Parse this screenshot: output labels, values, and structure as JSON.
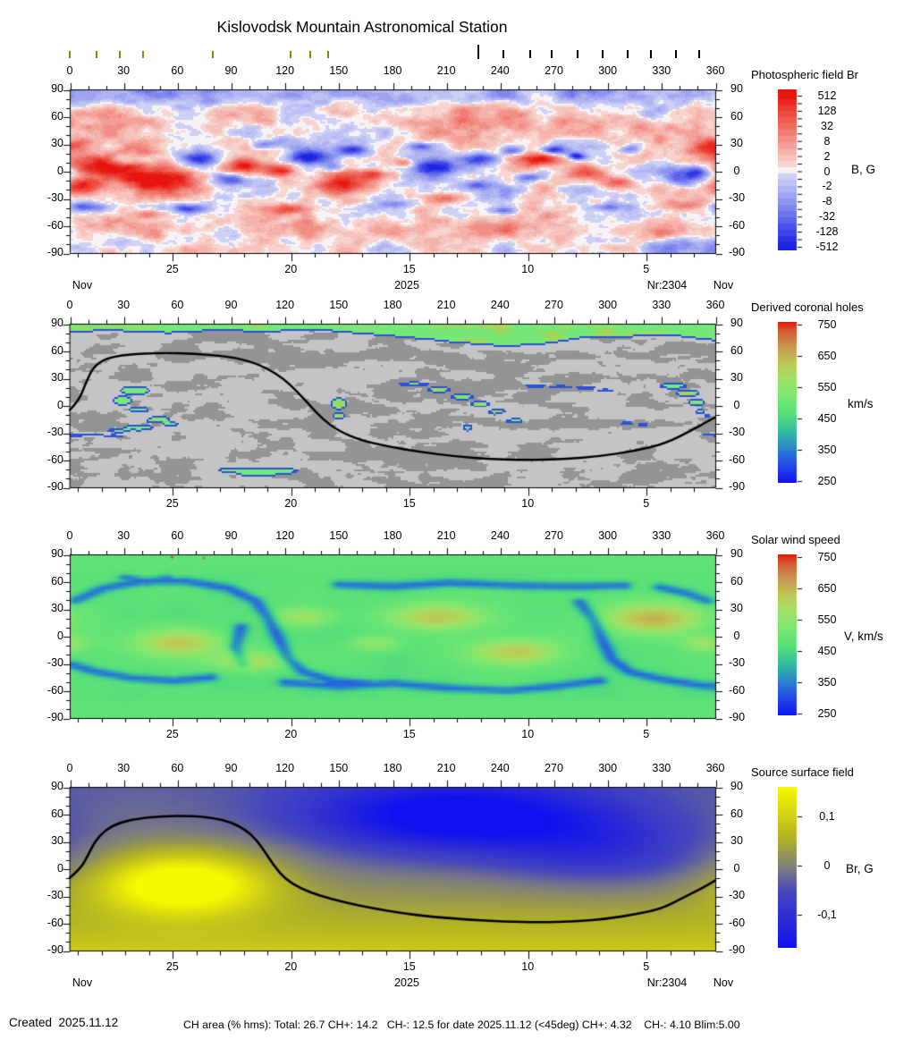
{
  "title": "Kislovodsk Mountain Astronomical Station",
  "footer": {
    "created": "Created  2025.11.12",
    "ch_area": "CH area (% hms): Total: 26.7 CH+: 14.2   CH-: 12.5 for date 2025.11.12 (<45deg) CH+: 4.32    CH-: 4.10 Blim:5.00"
  },
  "axis": {
    "lon_labels": [
      0,
      30,
      60,
      90,
      120,
      150,
      180,
      210,
      240,
      270,
      300,
      330,
      360
    ],
    "lat_labels": [
      90,
      60,
      30,
      0,
      -30,
      -60,
      -90
    ],
    "date_labels": [
      "25",
      "20",
      "15",
      "10",
      "5"
    ],
    "date_fracs": [
      0.159,
      0.3425,
      0.526,
      0.7095,
      0.893
    ],
    "day_step_frac": 0.0367,
    "month_left": "Nov",
    "month_right": "Nov",
    "year_label": "2025",
    "rotation_label": "Nr:2304"
  },
  "observation_marks": {
    "olive_lons": [
      0,
      15,
      28,
      41,
      80,
      123,
      134,
      144
    ],
    "black_lons": [
      242,
      257,
      269,
      283,
      297,
      311,
      324,
      338,
      351
    ],
    "tall_black_lon": 228,
    "olive_color": "#8a8a00"
  },
  "panels": [
    {
      "key": "br",
      "title": "Photospheric field Br",
      "unit": "B, G",
      "colorbar_ticks": [
        "512",
        "128",
        "32",
        "8",
        "2",
        "0",
        "-2",
        "-8",
        "-32",
        "-128",
        "-512"
      ],
      "show_month_row": true
    },
    {
      "key": "ch",
      "title": "Derived coronal holes",
      "unit": "km/s",
      "colorbar_ticks": [
        "750",
        "650",
        "550",
        "450",
        "350",
        "250"
      ],
      "show_month_row": false
    },
    {
      "key": "wind",
      "title": "Solar wind speed",
      "unit": "V, km/s",
      "colorbar_ticks": [
        "750",
        "650",
        "550",
        "450",
        "350",
        "250"
      ],
      "show_month_row": false
    },
    {
      "key": "ss",
      "title": "Source surface field",
      "unit": "Br, G",
      "colorbar_ticks": [
        "0,1",
        "0",
        "-0,1"
      ],
      "show_month_row": true
    }
  ],
  "chart_data": [
    {
      "type": "heatmap",
      "title": "Photospheric field Br",
      "x_range": [
        0,
        360
      ],
      "x_ticks": [
        0,
        30,
        60,
        90,
        120,
        150,
        180,
        210,
        240,
        270,
        300,
        330,
        360
      ],
      "y_range": [
        -90,
        90
      ],
      "y_ticks": [
        90,
        60,
        30,
        0,
        -30,
        -60,
        -90
      ],
      "colorbar": {
        "unit": "B, G",
        "tick_values": [
          512,
          128,
          32,
          8,
          2,
          0,
          -2,
          -8,
          -32,
          -128,
          -512
        ],
        "scale": "diverging red(+) / blue(-), quasi-log"
      },
      "date_axis": {
        "month": "Nov",
        "year": "2025",
        "days": [
          25,
          20,
          15,
          10,
          5
        ],
        "rotation": "Nr:2304"
      },
      "features": {
        "positive_regions_lon_lat_rlon_rlat_amp": [
          [
            18,
            6,
            26,
            16,
            1.15
          ],
          [
            50,
            -10,
            20,
            14,
            1.0
          ],
          [
            38,
            26,
            14,
            9,
            0.7
          ],
          [
            8,
            -18,
            12,
            9,
            0.8
          ],
          [
            95,
            6,
            13,
            8,
            0.85
          ],
          [
            117,
            0,
            9,
            7,
            0.8
          ],
          [
            150,
            -16,
            16,
            11,
            0.95
          ],
          [
            170,
            -4,
            9,
            7,
            0.8
          ],
          [
            186,
            10,
            7,
            5,
            0.6
          ],
          [
            262,
            14,
            13,
            8,
            0.95
          ],
          [
            290,
            -2,
            11,
            9,
            0.7
          ],
          [
            306,
            -14,
            9,
            7,
            0.6
          ],
          [
            341,
            -38,
            15,
            7,
            0.6
          ],
          [
            125,
            -42,
            13,
            6,
            0.5
          ],
          [
            44,
            -48,
            12,
            5,
            0.45
          ],
          [
            0,
            30,
            10,
            6,
            0.5
          ],
          [
            210,
            -30,
            9,
            5,
            0.4
          ],
          [
            355,
            25,
            10,
            6,
            0.45
          ]
        ],
        "negative_regions_lon_lat_rlon_rlat_amp": [
          [
            30,
            12,
            8,
            6,
            -0.75
          ],
          [
            72,
            14,
            12,
            9,
            -0.9
          ],
          [
            88,
            -10,
            8,
            6,
            -0.6
          ],
          [
            134,
            16,
            11,
            7,
            -0.85
          ],
          [
            158,
            24,
            9,
            5,
            -0.7
          ],
          [
            147,
            4,
            7,
            5,
            -0.55
          ],
          [
            205,
            4,
            13,
            9,
            -0.9
          ],
          [
            228,
            14,
            11,
            7,
            -0.95
          ],
          [
            247,
            23,
            7,
            5,
            -0.8
          ],
          [
            270,
            24,
            7,
            5,
            -0.9
          ],
          [
            283,
            17,
            5,
            4,
            -0.95
          ],
          [
            226,
            -16,
            9,
            6,
            -0.7
          ],
          [
            258,
            -8,
            7,
            5,
            -0.6
          ],
          [
            347,
            -4,
            13,
            11,
            -0.9
          ],
          [
            312,
            25,
            7,
            5,
            -0.6
          ],
          [
            10,
            -40,
            12,
            5,
            -0.6
          ],
          [
            66,
            -42,
            13,
            5,
            -0.65
          ],
          [
            182,
            -36,
            11,
            5,
            -0.55
          ],
          [
            300,
            -40,
            9,
            4,
            -0.5
          ],
          [
            242,
            -44,
            9,
            4,
            -0.5
          ],
          [
            110,
            30,
            8,
            5,
            -0.5
          ],
          [
            195,
            28,
            7,
            4,
            -0.5
          ]
        ],
        "north_polar_cap": "pale blue (weak negative)",
        "south_polar_cap": "pale pink (weak positive)"
      }
    },
    {
      "type": "heatmap",
      "title": "Derived coronal holes",
      "x_range": [
        0,
        360
      ],
      "y_range": [
        -90,
        90
      ],
      "colorbar": {
        "unit": "km/s",
        "tick_values": [
          750,
          650,
          550,
          450,
          350,
          250
        ]
      },
      "background": "light/dark gray mottled closed-field regions",
      "north_polar_coronal_hole": "green band above lat ~70-82, wavy lower edge on right half",
      "coronal_holes_lon_lat_rlon_rlat": [
        [
          36,
          17,
          9,
          6
        ],
        [
          29,
          6,
          6,
          6
        ],
        [
          38,
          -6,
          6,
          5
        ],
        [
          48,
          -16,
          8,
          5
        ],
        [
          38,
          -25,
          9,
          4
        ],
        [
          27,
          -28,
          7,
          3
        ],
        [
          56,
          -21,
          5,
          3
        ],
        [
          150,
          2,
          5,
          8
        ],
        [
          150,
          -12,
          4,
          4
        ],
        [
          192,
          24,
          9,
          3
        ],
        [
          206,
          18,
          7,
          4
        ],
        [
          219,
          10,
          7,
          4
        ],
        [
          229,
          2,
          6,
          4
        ],
        [
          239,
          -8,
          6,
          4
        ],
        [
          248,
          -17,
          5,
          4
        ],
        [
          260,
          22,
          7,
          2
        ],
        [
          274,
          21,
          7,
          2
        ],
        [
          288,
          20,
          6,
          2
        ],
        [
          299,
          17,
          5,
          2
        ],
        [
          222,
          -25,
          3,
          4
        ],
        [
          311,
          -20,
          4,
          2
        ],
        [
          320,
          -22,
          3,
          2
        ],
        [
          337,
          22,
          8,
          4
        ],
        [
          345,
          14,
          7,
          5
        ],
        [
          350,
          4,
          5,
          5
        ],
        [
          352,
          -7,
          3,
          3
        ],
        [
          105,
          -74,
          15,
          6
        ],
        [
          91,
          -72,
          9,
          4
        ],
        [
          119,
          -73,
          9,
          4
        ],
        [
          3,
          -33,
          7,
          2
        ],
        [
          13,
          -33,
          6,
          1.5
        ],
        [
          24,
          -34,
          7,
          1.5
        ],
        [
          357,
          -33,
          4,
          1.5
        ],
        [
          356,
          -12,
          2,
          2
        ]
      ],
      "hole_gaps_lon_lat_rlon_rlat": [
        [
          37,
          -13,
          6,
          4
        ],
        [
          243,
          -12,
          4,
          3
        ]
      ],
      "neutral_line_lon_lat": [
        [
          0,
          -5
        ],
        [
          5,
          5
        ],
        [
          9,
          25
        ],
        [
          13,
          42
        ],
        [
          20,
          52
        ],
        [
          32,
          56
        ],
        [
          50,
          58
        ],
        [
          70,
          57
        ],
        [
          88,
          54
        ],
        [
          100,
          49
        ],
        [
          110,
          41
        ],
        [
          119,
          30
        ],
        [
          127,
          15
        ],
        [
          134,
          0
        ],
        [
          141,
          -15
        ],
        [
          150,
          -28
        ],
        [
          162,
          -38
        ],
        [
          177,
          -45
        ],
        [
          195,
          -51
        ],
        [
          215,
          -56
        ],
        [
          235,
          -59
        ],
        [
          255,
          -60
        ],
        [
          275,
          -59
        ],
        [
          295,
          -56
        ],
        [
          315,
          -50
        ],
        [
          332,
          -42
        ],
        [
          348,
          -26
        ],
        [
          356,
          -17
        ],
        [
          360,
          -13
        ]
      ]
    },
    {
      "type": "heatmap",
      "title": "Solar wind speed",
      "x_range": [
        0,
        360
      ],
      "y_range": [
        -90,
        90
      ],
      "colorbar": {
        "unit": "V, km/s",
        "tick_values": [
          750,
          650,
          550,
          450,
          350,
          250
        ]
      },
      "base_speed_kms": 470,
      "slow_speed_kms": 330,
      "fast_regions_lon_lat_rlon_rlat_dv": [
        [
          60,
          -8,
          26,
          16,
          150
        ],
        [
          100,
          -28,
          20,
          11,
          120
        ],
        [
          130,
          22,
          18,
          11,
          110
        ],
        [
          205,
          22,
          28,
          15,
          160
        ],
        [
          248,
          -18,
          26,
          15,
          150
        ],
        [
          325,
          20,
          30,
          17,
          170
        ],
        [
          355,
          -8,
          14,
          9,
          100
        ],
        [
          170,
          -8,
          14,
          9,
          90
        ]
      ],
      "slow_stream_paths_lon_lat": [
        [
          [
            2,
            40
          ],
          [
            18,
            54
          ],
          [
            40,
            62
          ],
          [
            64,
            62
          ],
          [
            88,
            54
          ],
          [
            103,
            40
          ],
          [
            110,
            22
          ]
        ],
        [
          [
            110,
            22
          ],
          [
            116,
            -2
          ],
          [
            121,
            -24
          ],
          [
            130,
            -40
          ],
          [
            146,
            -50
          ],
          [
            170,
            -54
          ]
        ],
        [
          [
            0,
            -32
          ],
          [
            14,
            -40
          ],
          [
            34,
            -47
          ],
          [
            58,
            -50
          ],
          [
            78,
            -46
          ]
        ],
        [
          [
            120,
            -52
          ],
          [
            150,
            -56
          ],
          [
            180,
            -53
          ],
          [
            210,
            -58
          ],
          [
            245,
            -61
          ],
          [
            272,
            -56
          ],
          [
            296,
            -50
          ]
        ],
        [
          [
            150,
            58
          ],
          [
            180,
            56
          ],
          [
            212,
            60
          ],
          [
            248,
            57
          ],
          [
            282,
            56
          ],
          [
            310,
            57
          ]
        ],
        [
          [
            285,
            38
          ],
          [
            293,
            18
          ],
          [
            298,
            -6
          ],
          [
            303,
            -26
          ],
          [
            313,
            -40
          ],
          [
            330,
            -48
          ],
          [
            352,
            -55
          ],
          [
            360,
            -56
          ]
        ],
        [
          [
            30,
            66
          ],
          [
            42,
            61
          ],
          [
            54,
            65
          ]
        ],
        [
          [
            330,
            55
          ],
          [
            345,
            48
          ],
          [
            356,
            40
          ]
        ],
        [
          [
            95,
            10
          ],
          [
            92,
            -12
          ],
          [
            96,
            -30
          ]
        ]
      ]
    },
    {
      "type": "heatmap",
      "title": "Source surface field",
      "x_range": [
        0,
        360
      ],
      "y_range": [
        -90,
        90
      ],
      "colorbar": {
        "unit": "Br, G",
        "tick_labels": [
          "0,1",
          "0",
          "-0,1"
        ]
      },
      "positive_pole": {
        "lon": 62,
        "lat": -16
      },
      "negative_pole": {
        "lon": 215,
        "lat": 58
      },
      "south_hemisphere": "weak positive (olive-yellow)",
      "neutral_line_lon_lat": [
        [
          0,
          -10
        ],
        [
          6,
          0
        ],
        [
          10,
          14
        ],
        [
          14,
          30
        ],
        [
          20,
          43
        ],
        [
          28,
          51
        ],
        [
          38,
          55
        ],
        [
          52,
          58
        ],
        [
          68,
          58
        ],
        [
          80,
          56
        ],
        [
          90,
          51
        ],
        [
          98,
          43
        ],
        [
          104,
          32
        ],
        [
          109,
          18
        ],
        [
          114,
          3
        ],
        [
          120,
          -11
        ],
        [
          129,
          -22
        ],
        [
          140,
          -30
        ],
        [
          153,
          -37
        ],
        [
          168,
          -43
        ],
        [
          185,
          -49
        ],
        [
          203,
          -53
        ],
        [
          222,
          -56
        ],
        [
          242,
          -58
        ],
        [
          262,
          -59
        ],
        [
          282,
          -58
        ],
        [
          300,
          -55
        ],
        [
          316,
          -50
        ],
        [
          330,
          -44
        ],
        [
          342,
          -32
        ],
        [
          352,
          -22
        ],
        [
          360,
          -13
        ]
      ]
    }
  ]
}
